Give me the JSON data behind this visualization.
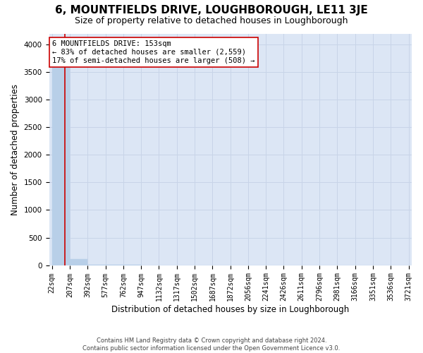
{
  "title": "6, MOUNTFIELDS DRIVE, LOUGHBOROUGH, LE11 3JE",
  "subtitle": "Size of property relative to detached houses in Loughborough",
  "xlabel": "Distribution of detached houses by size in Loughborough",
  "ylabel": "Number of detached properties",
  "footnote": "Contains HM Land Registry data © Crown copyright and database right 2024.\nContains public sector information licensed under the Open Government Licence v3.0.",
  "bar_edges": [
    22,
    207,
    392,
    577,
    762,
    947,
    1132,
    1317,
    1502,
    1687,
    1872,
    2056,
    2241,
    2426,
    2611,
    2796,
    2981,
    3166,
    3351,
    3536,
    3721
  ],
  "bar_heights": [
    3970,
    110,
    5,
    3,
    2,
    1,
    1,
    1,
    1,
    0,
    0,
    0,
    0,
    0,
    0,
    0,
    0,
    0,
    0,
    0
  ],
  "bar_color": "#b8cfe8",
  "bar_edgecolor": "#b8cfe8",
  "property_size": 153,
  "redline_color": "#cc0000",
  "annotation_text": "6 MOUNTFIELDS DRIVE: 153sqm\n← 83% of detached houses are smaller (2,559)\n17% of semi-detached houses are larger (508) →",
  "annotation_box_edgecolor": "#cc0000",
  "annotation_box_facecolor": "#ffffff",
  "ylim": [
    0,
    4200
  ],
  "yticks": [
    0,
    500,
    1000,
    1500,
    2000,
    2500,
    3000,
    3500,
    4000
  ],
  "grid_color": "#c8d4e8",
  "bg_color": "#dce6f5",
  "title_fontsize": 11,
  "subtitle_fontsize": 9,
  "axis_label_fontsize": 8.5,
  "tick_fontsize": 7.5,
  "annot_fontsize": 7.5
}
